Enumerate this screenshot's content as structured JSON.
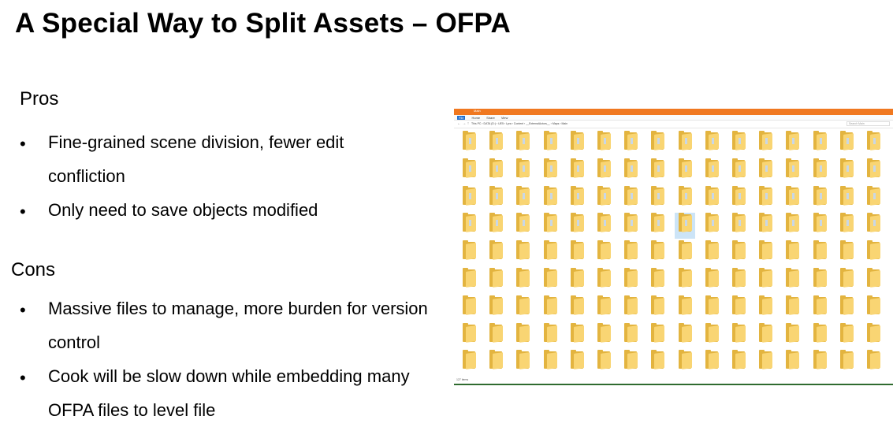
{
  "slide": {
    "title": "A Special Way to Split Assets – OFPA",
    "pros_heading": "Pros",
    "pros": [
      {
        "line1": "Fine-grained scene division, fewer edit",
        "line2": "confliction"
      },
      {
        "line1": "Only need to save objects modified"
      }
    ],
    "cons_heading": "Cons",
    "cons": [
      {
        "line1": "Massive files to manage, more burden for version",
        "line2": "control"
      },
      {
        "line1": "Cook will be slow down while embedding many",
        "line2": "OFPA files to level file"
      }
    ],
    "bullet": "•"
  },
  "explorer": {
    "window_title": "Main",
    "ribbon_tabs": [
      "File",
      "Home",
      "Share",
      "View"
    ],
    "nav_glyphs": "← → ↑",
    "address_path": "This PC  ›  DATA (D:)  ›  UE5  ›  Lyra  ›  Content  ›  __ExternalActors__  ›  Maps  ›  Main",
    "search_placeholder": "Search Main",
    "status_text": "127 items",
    "colors": {
      "titlebar": "#f07820",
      "folder_back": "#e3b43f",
      "folder_front": "#f9d573",
      "selection": "#cce4f7"
    }
  }
}
